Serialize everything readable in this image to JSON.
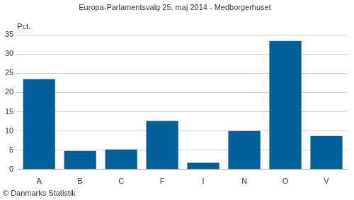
{
  "chart_data": {
    "type": "bar",
    "title": "Europa-Parlamentsvalg 25. maj 2014 - Medborgerhuset",
    "y_label": "Pct.",
    "note": "© Danmarks Statistik",
    "categories": [
      "A",
      "B",
      "C",
      "F",
      "I",
      "N",
      "O",
      "V"
    ],
    "values": [
      23.5,
      4.8,
      5.2,
      12.6,
      1.7,
      10.0,
      33.4,
      8.7
    ],
    "color": "#00609a",
    "ylim": [
      0,
      35
    ],
    "yticks": [
      0,
      5,
      10,
      15,
      20,
      25,
      30,
      35
    ],
    "grid": true
  }
}
